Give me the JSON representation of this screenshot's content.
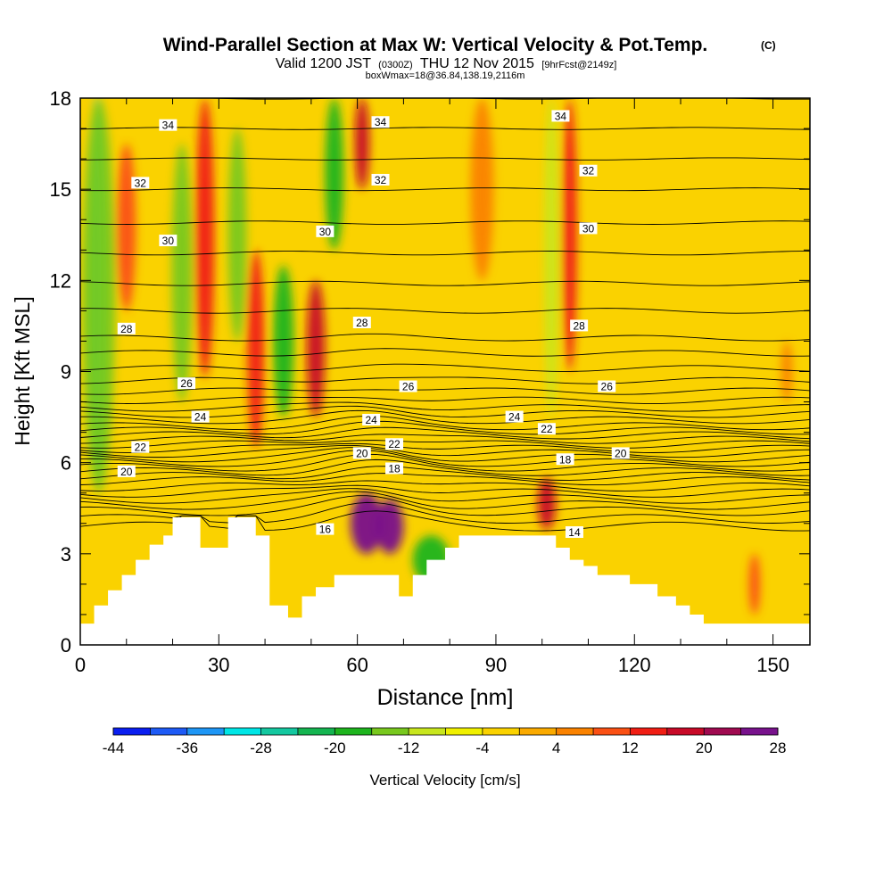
{
  "chart_data": {
    "type": "heatmap",
    "title": "Wind-Parallel Section at Max W: Vertical Velocity & Pot.Temp.",
    "title_mark": "(C)",
    "subtitle_main": "Valid 1200 JST",
    "subtitle_utc": "(0300Z)",
    "subtitle_date": "THU 12 Nov 2015",
    "subtitle_fcst": "[9hrFcst@2149z]",
    "subtitle2": "boxWmax=18@36.84,138.19,2116m",
    "xlabel": "Distance [nm]",
    "ylabel": "Height [Kft MSL]",
    "xlim": [
      0,
      158
    ],
    "ylim": [
      0,
      18
    ],
    "x_ticks": [
      "0",
      "30",
      "60",
      "90",
      "120",
      "150"
    ],
    "x_tick_values": [
      0,
      30,
      60,
      90,
      120,
      150
    ],
    "y_ticks": [
      "0",
      "3",
      "6",
      "9",
      "12",
      "15",
      "18"
    ],
    "y_tick_values": [
      0,
      3,
      6,
      9,
      12,
      15,
      18
    ],
    "colorbar": {
      "label": "Vertical Velocity [cm/s]",
      "levels": [
        -44,
        -40,
        -36,
        -32,
        -28,
        -24,
        -20,
        -16,
        -12,
        -8,
        -4,
        0,
        4,
        8,
        12,
        16,
        20,
        24,
        28
      ],
      "tick_labels": [
        "-44",
        "-36",
        "-28",
        "-20",
        "-12",
        "-4",
        "4",
        "12",
        "20",
        "28"
      ],
      "tick_values": [
        -44,
        -36,
        -28,
        -20,
        -12,
        -4,
        4,
        12,
        20,
        28
      ],
      "colors": [
        "#0a1ef0",
        "#1e5af5",
        "#1e96f5",
        "#00e6e6",
        "#14c8a0",
        "#14b450",
        "#1eb41e",
        "#78c81e",
        "#c8e61e",
        "#f0f000",
        "#fad200",
        "#faaa00",
        "#fa8200",
        "#fa5014",
        "#f01e14",
        "#c80a28",
        "#a00a50",
        "#78128c"
      ]
    },
    "theta_contours_label": "Pot.Temp.",
    "theta_contour_labels": [
      {
        "text": "34",
        "x": 19,
        "y": 17.1
      },
      {
        "text": "34",
        "x": 65,
        "y": 17.2
      },
      {
        "text": "34",
        "x": 104,
        "y": 17.4
      },
      {
        "text": "32",
        "x": 13,
        "y": 15.2
      },
      {
        "text": "32",
        "x": 65,
        "y": 15.3
      },
      {
        "text": "32",
        "x": 110,
        "y": 15.6
      },
      {
        "text": "30",
        "x": 19,
        "y": 13.3
      },
      {
        "text": "30",
        "x": 53,
        "y": 13.6
      },
      {
        "text": "30",
        "x": 110,
        "y": 13.7
      },
      {
        "text": "28",
        "x": 10,
        "y": 10.4
      },
      {
        "text": "28",
        "x": 61,
        "y": 10.6
      },
      {
        "text": "28",
        "x": 108,
        "y": 10.5
      },
      {
        "text": "26",
        "x": 23,
        "y": 8.6
      },
      {
        "text": "26",
        "x": 71,
        "y": 8.5
      },
      {
        "text": "26",
        "x": 114,
        "y": 8.5
      },
      {
        "text": "24",
        "x": 26,
        "y": 7.5
      },
      {
        "text": "24",
        "x": 63,
        "y": 7.4
      },
      {
        "text": "24",
        "x": 94,
        "y": 7.5
      },
      {
        "text": "22",
        "x": 13,
        "y": 6.5
      },
      {
        "text": "22",
        "x": 68,
        "y": 6.6
      },
      {
        "text": "22",
        "x": 101,
        "y": 7.1
      },
      {
        "text": "20",
        "x": 10,
        "y": 5.7
      },
      {
        "text": "20",
        "x": 61,
        "y": 6.3
      },
      {
        "text": "20",
        "x": 117,
        "y": 6.3
      },
      {
        "text": "18",
        "x": 68,
        "y": 5.8
      },
      {
        "text": "18",
        "x": 105,
        "y": 6.1
      },
      {
        "text": "16",
        "x": 53,
        "y": 3.8
      },
      {
        "text": "14",
        "x": 107,
        "y": 3.7
      }
    ],
    "theta_contour_levels": [
      13,
      13.5,
      14,
      14.5,
      15,
      15.5,
      16,
      16.5,
      17,
      17.5,
      18,
      18.5,
      19,
      19.5,
      20,
      20.5,
      21,
      21.5,
      22,
      22.5,
      23,
      23.5,
      24,
      24.5,
      25,
      25.5,
      26,
      26.5,
      27,
      28,
      29,
      30,
      31,
      32,
      33,
      34,
      35
    ],
    "theta_contour_base_height": [
      3.9,
      4.15,
      4.4,
      4.6,
      4.8,
      5.0,
      5.2,
      5.4,
      5.55,
      5.7,
      5.85,
      6.0,
      6.15,
      6.3,
      6.45,
      6.6,
      6.75,
      6.9,
      7.05,
      7.2,
      7.4,
      7.6,
      7.8,
      8.05,
      8.35,
      8.7,
      9.1,
      9.6,
      10.1,
      11.0,
      11.9,
      12.9,
      13.9,
      15.0,
      16.0,
      17.0,
      18.0
    ],
    "vertical_velocity_features": [
      {
        "x": 3.5,
        "y_bottom": 5.4,
        "y_top": 18,
        "w_cm_s": -30,
        "half_width_nm": 1.6
      },
      {
        "x": 4,
        "y_bottom": 5.0,
        "y_top": 18,
        "w_cm_s": -16,
        "half_width_nm": 3.5
      },
      {
        "x": 10,
        "y_bottom": 11.0,
        "y_top": 16.5,
        "w_cm_s": 8,
        "half_width_nm": 2.0
      },
      {
        "x": 22,
        "y_bottom": 8.0,
        "y_top": 16.5,
        "w_cm_s": -14,
        "half_width_nm": 2.2
      },
      {
        "x": 27,
        "y_bottom": 8.8,
        "y_top": 18,
        "w_cm_s": 15,
        "half_width_nm": 2.0
      },
      {
        "x": 34,
        "y_bottom": 10.0,
        "y_top": 17.0,
        "w_cm_s": -14,
        "half_width_nm": 2.0
      },
      {
        "x": 38,
        "y_bottom": 6.5,
        "y_top": 13.0,
        "w_cm_s": 14,
        "half_width_nm": 1.8
      },
      {
        "x": 44,
        "y_bottom": 7.5,
        "y_top": 12.5,
        "w_cm_s": -20,
        "half_width_nm": 2.2
      },
      {
        "x": 51,
        "y_bottom": 7.5,
        "y_top": 12.0,
        "w_cm_s": 18,
        "half_width_nm": 2.0
      },
      {
        "x": 55,
        "y_bottom": 13.0,
        "y_top": 18,
        "w_cm_s": -18,
        "half_width_nm": 2.0
      },
      {
        "x": 61,
        "y_bottom": 15.0,
        "y_top": 18,
        "w_cm_s": 16,
        "half_width_nm": 1.6
      },
      {
        "x": 62,
        "y_bottom": 3.0,
        "y_top": 5.0,
        "w_cm_s": 26,
        "half_width_nm": 3.5
      },
      {
        "x": 67,
        "y_bottom": 3.0,
        "y_top": 4.8,
        "w_cm_s": 25,
        "half_width_nm": 3.0
      },
      {
        "x": 76,
        "y_bottom": 2.0,
        "y_top": 3.6,
        "w_cm_s": -20,
        "half_width_nm": 4.0
      },
      {
        "x": 87,
        "y_bottom": 12.0,
        "y_top": 18,
        "w_cm_s": 6,
        "half_width_nm": 2.5
      },
      {
        "x": 101,
        "y_bottom": 3.8,
        "y_top": 5.5,
        "w_cm_s": 16,
        "half_width_nm": 2.0
      },
      {
        "x": 102,
        "y_bottom": 7.5,
        "y_top": 18,
        "w_cm_s": -10,
        "half_width_nm": 1.5
      },
      {
        "x": 106,
        "y_bottom": 9.0,
        "y_top": 18,
        "w_cm_s": 14,
        "half_width_nm": 1.5
      },
      {
        "x": 146,
        "y_bottom": 1.0,
        "y_top": 3.0,
        "w_cm_s": 10,
        "half_width_nm": 1.2
      },
      {
        "x": 153,
        "y_bottom": 8.0,
        "y_top": 10.0,
        "w_cm_s": 6,
        "half_width_nm": 1.2
      }
    ],
    "terrain_profile_nm": [
      [
        0,
        0.7
      ],
      [
        3,
        0.7
      ],
      [
        3,
        1.3
      ],
      [
        6,
        1.3
      ],
      [
        6,
        1.8
      ],
      [
        9,
        1.8
      ],
      [
        9,
        2.3
      ],
      [
        12,
        2.3
      ],
      [
        12,
        2.8
      ],
      [
        15,
        2.8
      ],
      [
        15,
        3.3
      ],
      [
        18,
        3.3
      ],
      [
        18,
        3.6
      ],
      [
        20,
        3.6
      ],
      [
        20,
        4.2
      ],
      [
        26,
        4.2
      ],
      [
        26,
        3.2
      ],
      [
        32,
        3.2
      ],
      [
        32,
        4.2
      ],
      [
        38,
        4.2
      ],
      [
        38,
        3.6
      ],
      [
        41,
        3.6
      ],
      [
        41,
        1.3
      ],
      [
        45,
        1.3
      ],
      [
        45,
        0.9
      ],
      [
        48,
        0.9
      ],
      [
        48,
        1.6
      ],
      [
        51,
        1.6
      ],
      [
        51,
        1.9
      ],
      [
        55,
        1.9
      ],
      [
        55,
        2.3
      ],
      [
        69,
        2.3
      ],
      [
        69,
        1.6
      ],
      [
        72,
        1.6
      ],
      [
        72,
        2.3
      ],
      [
        75,
        2.3
      ],
      [
        75,
        2.8
      ],
      [
        79,
        2.8
      ],
      [
        79,
        3.2
      ],
      [
        82,
        3.2
      ],
      [
        82,
        3.6
      ],
      [
        103,
        3.6
      ],
      [
        103,
        3.2
      ],
      [
        106,
        3.2
      ],
      [
        106,
        2.8
      ],
      [
        109,
        2.8
      ],
      [
        109,
        2.6
      ],
      [
        112,
        2.6
      ],
      [
        112,
        2.3
      ],
      [
        119,
        2.3
      ],
      [
        119,
        2.0
      ],
      [
        125,
        2.0
      ],
      [
        125,
        1.6
      ],
      [
        129,
        1.6
      ],
      [
        129,
        1.3
      ],
      [
        132,
        1.3
      ],
      [
        132,
        1.0
      ],
      [
        135,
        1.0
      ],
      [
        135,
        0.7
      ],
      [
        158,
        0.7
      ]
    ]
  }
}
